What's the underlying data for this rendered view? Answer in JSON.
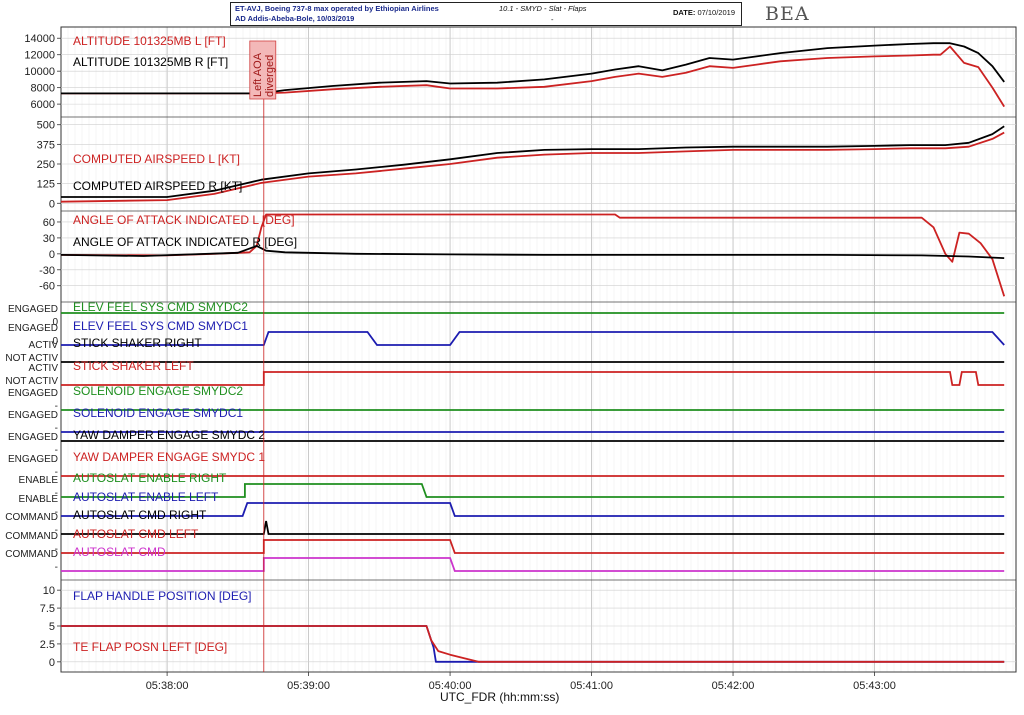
{
  "header": {
    "aircraft_line": "ET-AVJ, Boeing 737-8 max operated by Ethiopian Airlines",
    "route_line": "AD Addis-Abeba-Bole, 10/03/2019",
    "document": "10.1 - SMYD - Slat - Flaps",
    "date_label": "DATE:",
    "date_value": "07/10/2019",
    "dash": "-"
  },
  "logo": "BEA",
  "chart_data": {
    "type": "line",
    "xlabel": "UTC_FDR (hh:mm:ss)",
    "x_ticks": [
      "05:38:00",
      "05:39:00",
      "05:40:00",
      "05:41:00",
      "05:42:00",
      "05:43:00"
    ],
    "x_tick_seconds": [
      22680,
      22740,
      22800,
      22860,
      22920,
      22980
    ],
    "xlim": [
      22635,
      23040
    ],
    "annotation": {
      "text_line1": "Left AOA",
      "text_line2": "diverged",
      "x": 22721
    },
    "colors": {
      "red": "#cc2222",
      "black": "#000000",
      "blue": "#1c1cb0",
      "green": "#1f8f1f",
      "magenta": "#cc33cc"
    },
    "panels": [
      {
        "id": "altitude",
        "yticks": [
          "14000",
          "12000",
          "10000",
          "8000",
          "6000"
        ],
        "ytick_values": [
          14000,
          12000,
          10000,
          8000,
          6000
        ],
        "ylim": [
          4800,
          15000
        ],
        "series": [
          {
            "name": "ALTITUDE 101325MB L [FT]",
            "color": "red",
            "x": [
              22635,
              22690,
              22720,
              22730,
              22750,
              22770,
              22790,
              22800,
              22820,
              22840,
              22860,
              22870,
              22880,
              22890,
              22900,
              22910,
              22920,
              22930,
              22940,
              22950,
              22960,
              22980,
              22995,
              23005,
              23008,
              23012,
              23018,
              23024,
              23030,
              23035
            ],
            "y": [
              7300,
              7300,
              7300,
              7400,
              7800,
              8100,
              8300,
              7900,
              7900,
              8100,
              8800,
              9300,
              9700,
              9300,
              9800,
              10600,
              10400,
              10800,
              11200,
              11400,
              11600,
              11800,
              11900,
              12000,
              12000,
              13000,
              11000,
              10500,
              8000,
              5700
            ]
          },
          {
            "name": "ALTITUDE 101325MB R [FT]",
            "color": "black",
            "x": [
              22635,
              22690,
              22720,
              22730,
              22750,
              22770,
              22790,
              22800,
              22820,
              22840,
              22860,
              22870,
              22880,
              22890,
              22900,
              22910,
              22920,
              22930,
              22940,
              22950,
              22960,
              22980,
              22995,
              23005,
              23012,
              23018,
              23024,
              23030,
              23035
            ],
            "y": [
              7300,
              7300,
              7300,
              7700,
              8200,
              8600,
              8800,
              8500,
              8600,
              9000,
              9700,
              10200,
              10600,
              10100,
              10800,
              11600,
              11400,
              11800,
              12200,
              12500,
              12800,
              13100,
              13300,
              13400,
              13400,
              13000,
              12200,
              10600,
              8700
            ]
          }
        ]
      },
      {
        "id": "airspeed",
        "yticks": [
          "500",
          "375",
          "250",
          "125",
          "0"
        ],
        "ytick_values": [
          500,
          375,
          250,
          125,
          0
        ],
        "ylim": [
          -30,
          530
        ],
        "series": [
          {
            "name": "COMPUTED AIRSPEED L [KT]",
            "color": "red",
            "x": [
              22635,
              22680,
              22700,
              22720,
              22740,
              22760,
              22780,
              22800,
              22820,
              22840,
              22860,
              22880,
              22900,
              22920,
              22940,
              22960,
              22980,
              22995,
              23010,
              23020,
              23030,
              23035
            ],
            "y": [
              10,
              20,
              60,
              130,
              170,
              190,
              220,
              250,
              290,
              310,
              320,
              320,
              330,
              340,
              340,
              340,
              345,
              350,
              350,
              360,
              410,
              450
            ]
          },
          {
            "name": "COMPUTED AIRSPEED R [KT]",
            "color": "black",
            "x": [
              22635,
              22680,
              22700,
              22720,
              22740,
              22760,
              22780,
              22800,
              22820,
              22840,
              22860,
              22880,
              22900,
              22920,
              22940,
              22960,
              22980,
              22995,
              23010,
              23020,
              23030,
              23035
            ],
            "y": [
              40,
              40,
              80,
              150,
              190,
              215,
              245,
              280,
              320,
              340,
              345,
              345,
              355,
              360,
              360,
              360,
              365,
              370,
              370,
              385,
              440,
              490
            ]
          }
        ]
      },
      {
        "id": "aoa",
        "yticks": [
          "60",
          "30",
          "0",
          "-30",
          "-60"
        ],
        "ytick_values": [
          60,
          30,
          0,
          -30,
          -60
        ],
        "ylim": [
          -85,
          75
        ],
        "series": [
          {
            "name": "ANGLE OF ATTACK INDICATED L [DEG]",
            "color": "red",
            "x": [
              22635,
              22680,
              22700,
              22715,
              22718,
              22720,
              22722,
              22725,
              22870,
              22872,
              23000,
              23005,
              23010,
              23013,
              23016,
              23020,
              23025,
              23030,
              23035
            ],
            "y": [
              -2,
              -3,
              0,
              3,
              15,
              50,
              74,
              74,
              74,
              68,
              68,
              50,
              0,
              -15,
              40,
              38,
              20,
              -10,
              -80
            ]
          },
          {
            "name": "ANGLE OF ATTACK INDICATED R [DEG]",
            "color": "black",
            "x": [
              22635,
              22670,
              22690,
              22710,
              22718,
              22722,
              22730,
              22760,
              22800,
              22840,
              22880,
              22920,
              22960,
              23000,
              23020,
              23035
            ],
            "y": [
              -2,
              -4,
              -1,
              2,
              15,
              6,
              3,
              0,
              -1,
              -2,
              -2,
              -2,
              -2,
              -3,
              -5,
              -8
            ]
          }
        ]
      },
      {
        "id": "discretes",
        "series": [
          {
            "name": "ELEV FEEL SYS CMD SMYDC2",
            "color": "green",
            "label_hi": "ENGAGED",
            "label_lo": "0",
            "x": [
              22635,
              23035
            ],
            "y": [
              1,
              1
            ]
          },
          {
            "name": "ELEV FEEL SYS CMD SMYDC1",
            "color": "blue",
            "label_hi": "ENGAGED",
            "label_lo": "0",
            "x": [
              22635,
              22721,
              22723,
              22765,
              22769,
              22800,
              22804,
              23030,
              23035
            ],
            "y": [
              0,
              0,
              1,
              1,
              0,
              0,
              1,
              1,
              0
            ]
          },
          {
            "name": "STICK SHAKER RIGHT",
            "color": "black",
            "label_hi": "ACTIV",
            "label_lo": "NOT ACTIV",
            "x": [
              22635,
              23035
            ],
            "y": [
              0,
              0
            ]
          },
          {
            "name": "STICK SHAKER LEFT",
            "color": "red",
            "label_hi": "ACTIV",
            "label_lo": "NOT ACTIV",
            "x": [
              22635,
              22721,
              22721,
              23012,
              23013,
              23016,
              23017,
              23023,
              23024,
              23035
            ],
            "y": [
              0,
              0,
              1,
              1,
              0,
              0,
              1,
              1,
              0,
              0
            ]
          },
          {
            "name": "SOLENOID ENGAGE SMYDC2",
            "color": "green",
            "label_hi": "ENGAGED",
            "label_lo": "-",
            "x": [
              22635,
              23035
            ],
            "y": [
              0,
              0
            ]
          },
          {
            "name": "SOLENOID ENGAGE SMYDC1",
            "color": "blue",
            "label_hi": "ENGAGED",
            "label_lo": "-",
            "x": [
              22635,
              23035
            ],
            "y": [
              0,
              0
            ]
          },
          {
            "name": "YAW DAMPER ENGAGE SMYDC 2",
            "color": "black",
            "label_hi": "ENGAGED",
            "label_lo": "-",
            "x": [
              22635,
              23035
            ],
            "y": [
              1,
              1
            ]
          },
          {
            "name": "YAW DAMPER ENGAGE SMYDC 1",
            "color": "red",
            "label_hi": "ENGAGED",
            "label_lo": "-",
            "x": [
              22635,
              23035
            ],
            "y": [
              0,
              0
            ]
          },
          {
            "name": "AUTOSLAT ENABLE RIGHT",
            "color": "green",
            "label_hi": "ENABLE",
            "label_lo": "-",
            "x": [
              22635,
              22713,
              22713,
              22788,
              22790,
              23035
            ],
            "y": [
              0,
              0,
              1,
              1,
              0,
              0
            ]
          },
          {
            "name": "AUTOSLAT ENABLE LEFT",
            "color": "blue",
            "label_hi": "ENABLE",
            "label_lo": "-",
            "x": [
              22635,
              22712,
              22714,
              22800,
              22802,
              23035
            ],
            "y": [
              0,
              0,
              1,
              1,
              0,
              0
            ]
          },
          {
            "name": "AUTOSLAT CMD RIGHT",
            "color": "black",
            "label_hi": "COMMAND",
            "label_lo": "-",
            "x": [
              22635,
              22721,
              22722,
              22723,
              23035
            ],
            "y": [
              0,
              0,
              1,
              0,
              0
            ]
          },
          {
            "name": "AUTOSLAT CMD LEFT",
            "color": "red",
            "label_hi": "COMMAND",
            "label_lo": "-",
            "x": [
              22635,
              22721,
              22721,
              22800,
              22802,
              23035
            ],
            "y": [
              0,
              0,
              1,
              1,
              0,
              0
            ]
          },
          {
            "name": "AUTOSLAT CMD",
            "color": "magenta",
            "label_hi": "COMMAND",
            "label_lo": "-",
            "x": [
              22635,
              22721,
              22721,
              22800,
              22802,
              23035
            ],
            "y": [
              0,
              0,
              1,
              1,
              0,
              0
            ]
          }
        ]
      },
      {
        "id": "flaps",
        "yticks": [
          "10",
          "7.5",
          "5",
          "2.5",
          "0"
        ],
        "ytick_values": [
          10,
          7.5,
          5,
          2.5,
          0
        ],
        "ylim": [
          -1,
          11
        ],
        "series": [
          {
            "name": "FLAP HANDLE POSITION [DEG]",
            "color": "blue",
            "x": [
              22635,
              22790,
              22793,
              22794,
              23035
            ],
            "y": [
              5,
              5,
              2,
              0,
              0
            ]
          },
          {
            "name": "TE FLAP POSN LEFT [DEG]",
            "color": "red",
            "x": [
              22635,
              22790,
              22792,
              22795,
              22800,
              22806,
              22812,
              23035
            ],
            "y": [
              5,
              5,
              3,
              1.5,
              1,
              0.5,
              0,
              0
            ]
          }
        ]
      }
    ]
  }
}
